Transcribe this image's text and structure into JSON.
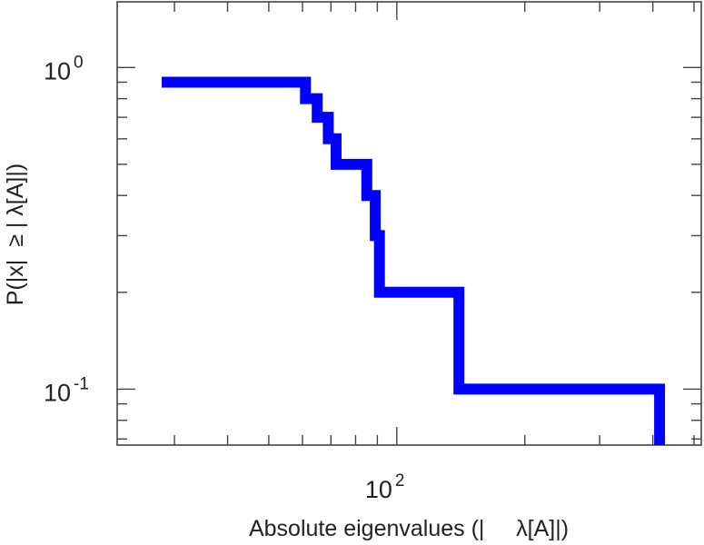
{
  "chart_data": {
    "type": "line",
    "title": "",
    "xlabel": "Absolute eigenvalues (|     λ[A]|)",
    "ylabel": "P(|x|  ≥ | λ[A]|)",
    "x_scale": "log",
    "y_scale": "log",
    "xlim": [
      22,
      520
    ],
    "ylim": [
      0.067,
      1.6
    ],
    "grid": false,
    "x_tick_labels": [
      {
        "value": 100,
        "base": "10",
        "exponent": "2"
      }
    ],
    "y_tick_labels": [
      {
        "value": 1,
        "base": "10",
        "exponent": "0"
      },
      {
        "value": 0.1,
        "base": "10",
        "exponent": "-1"
      }
    ],
    "series": [
      {
        "color": "#0000ff",
        "style": "step",
        "points": [
          [
            28,
            0.9
          ],
          [
            61,
            0.9
          ],
          [
            61,
            0.8
          ],
          [
            65,
            0.8
          ],
          [
            65,
            0.7
          ],
          [
            69,
            0.7
          ],
          [
            69,
            0.6
          ],
          [
            72,
            0.6
          ],
          [
            72,
            0.5
          ],
          [
            85,
            0.5
          ],
          [
            85,
            0.4
          ],
          [
            89,
            0.4
          ],
          [
            89,
            0.3
          ],
          [
            91,
            0.3
          ],
          [
            91,
            0.2
          ],
          [
            140,
            0.2
          ],
          [
            140,
            0.1
          ],
          [
            415,
            0.1
          ],
          [
            415,
            0.067
          ]
        ]
      }
    ]
  }
}
